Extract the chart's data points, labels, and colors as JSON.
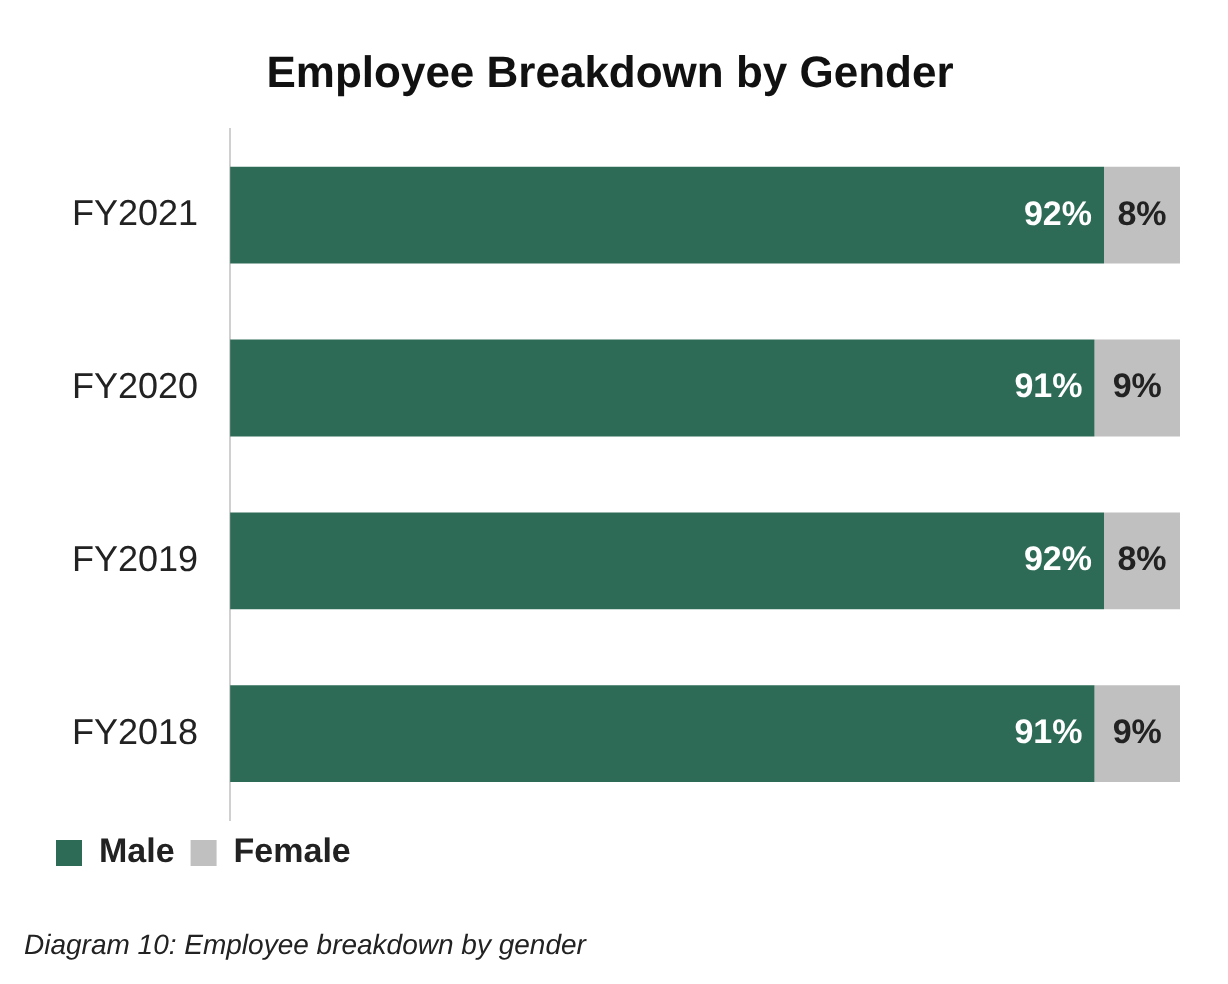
{
  "chart_data": {
    "type": "bar",
    "orientation": "horizontal",
    "stacked": true,
    "title": "Employee Breakdown by Gender",
    "categories": [
      "FY2021",
      "FY2020",
      "FY2019",
      "FY2018"
    ],
    "series": [
      {
        "name": "Male",
        "color": "#2e6b57",
        "values": [
          92,
          91,
          92,
          91
        ],
        "value_labels": [
          "92%",
          "91%",
          "92%",
          "91%"
        ]
      },
      {
        "name": "Female",
        "color": "#c0c0c0",
        "values": [
          8,
          9,
          8,
          9
        ],
        "value_labels": [
          "8%",
          "9%",
          "8%",
          "9%"
        ]
      }
    ],
    "legend": "bottom left",
    "grid": false,
    "tick_labels": "y",
    "annotations": [
      "Diagram 10: Employee breakdown by gender"
    ]
  }
}
